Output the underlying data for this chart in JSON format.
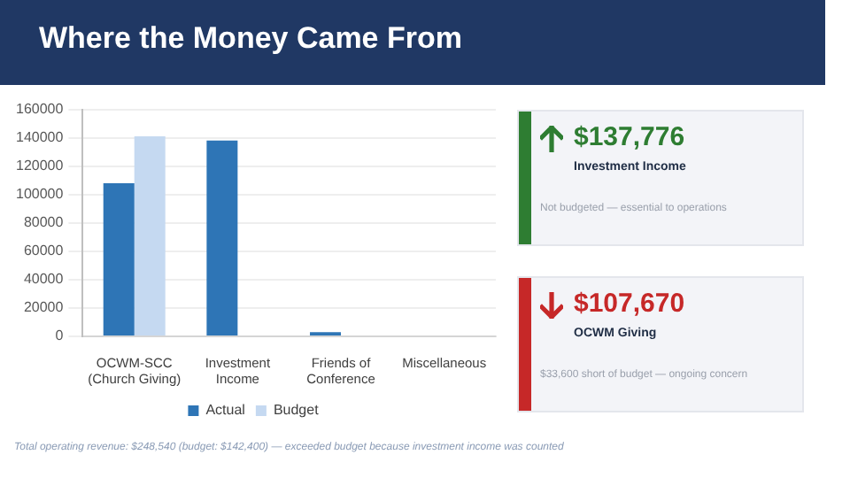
{
  "chart_data": [
    {
      "type": "bar",
      "title": "Where the Money Came From",
      "categories": [
        "OCWM-SCC (Church Giving)",
        "Investment Income",
        "Friends of Conference",
        "Miscellaneous"
      ],
      "series": [
        {
          "name": "Actual",
          "color": "#2e75b6",
          "values": [
            108000,
            138000,
            3000,
            0
          ]
        },
        {
          "name": "Budget",
          "color": "#c5d9f1",
          "values": [
            141000,
            0,
            null,
            0
          ]
        }
      ],
      "ylim": [
        0,
        160000
      ],
      "yticks": [
        0,
        20000,
        40000,
        60000,
        80000,
        100000,
        120000,
        140000,
        160000
      ],
      "grid": "y",
      "legend": "bottom",
      "annotations": [
        "Total operating revenue: $248,540  (budget: $142,400) — exceeded budget because investment income was counted"
      ]
    },
    {
      "type": "other",
      "annotations": [
        "$137,776",
        "Investment Income",
        "Not budgeted — essential to operations",
        "$107,670",
        "OCWM Giving",
        "$33,600 short of budget — ongoing concern"
      ]
    }
  ]
}
